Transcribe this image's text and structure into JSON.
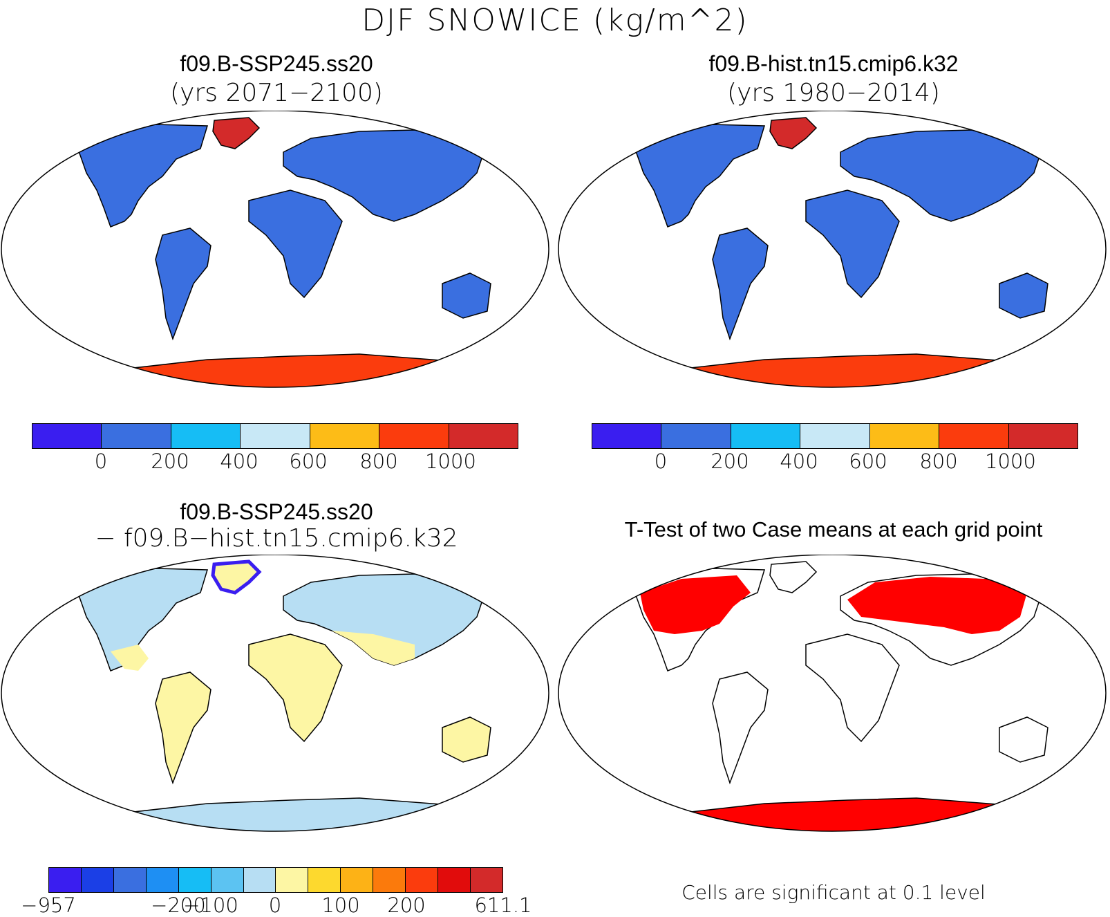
{
  "figure_title": "DJF SNOWICE (kg/m^2)",
  "panels": {
    "top_left": {
      "title": "f09.B-SSP245.ss20",
      "subtitle": "(yrs 2071−2100)"
    },
    "top_right": {
      "title": "f09.B-hist.tn15.cmip6.k32",
      "subtitle": "(yrs 1980−2014)"
    },
    "bottom_left": {
      "title": "f09.B-SSP245.ss20",
      "subtitle": "− f09.B−hist.tn15.cmip6.k32"
    },
    "bottom_right": {
      "title": "T-Test of two Case means at each grid point",
      "note": "Cells are significant at 0.1 level"
    }
  },
  "colorbars": {
    "absolute": {
      "colors": [
        "#3a1ef0",
        "#3a6fe0",
        "#16bdf5",
        "#c8e8f6",
        "#fdbc17",
        "#fb3c0d",
        "#d32a2a"
      ],
      "ticks": [
        "0",
        "200",
        "400",
        "600",
        "800",
        "1000"
      ]
    },
    "difference": {
      "colors": [
        "#3a1ef0",
        "#1b3fe6",
        "#3a6fe0",
        "#1e8ff3",
        "#16bdf5",
        "#5cc3f2",
        "#b7def3",
        "#fdf6a4",
        "#fdd92e",
        "#fdb216",
        "#fb7a0c",
        "#fb3c0d",
        "#e10c0c",
        "#d32a2a"
      ],
      "ticks": [
        "−957",
        "−200",
        "−100",
        "0",
        "100",
        "200",
        "611.1"
      ]
    }
  },
  "colors": {
    "land_absolute": "#3a6fe0",
    "greenland_absolute": "#d32a2a",
    "antarctica_absolute": "#fb3c0d",
    "land_difference_tropics": "#fdf6a4",
    "land_difference_north": "#b7def3",
    "antarctica_difference": "#b7def3",
    "significant": "#ff0000"
  }
}
